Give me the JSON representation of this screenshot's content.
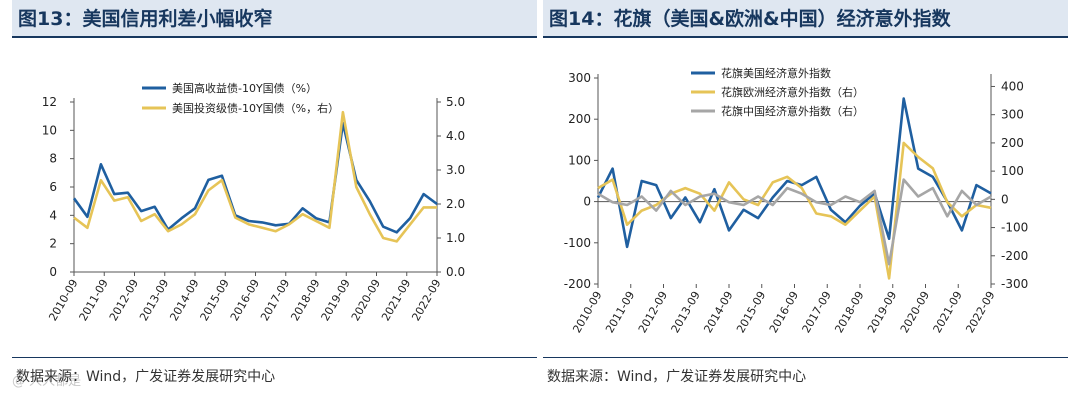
{
  "watermark": "@ 人人都是",
  "chart_data": [
    {
      "type": "line",
      "title": "图13：美国信用利差小幅收窄",
      "source": "数据来源：Wind，广发证券发展研究中心",
      "x": [
        "2010-09",
        "2011-03",
        "2011-09",
        "2012-03",
        "2012-09",
        "2013-03",
        "2013-09",
        "2014-03",
        "2014-09",
        "2015-03",
        "2015-09",
        "2016-03",
        "2016-09",
        "2017-03",
        "2017-09",
        "2018-03",
        "2018-09",
        "2019-03",
        "2019-09",
        "2020-01",
        "2020-03",
        "2020-06",
        "2020-09",
        "2021-03",
        "2021-09",
        "2022-03",
        "2022-06",
        "2022-09"
      ],
      "x_tick_labels": [
        "2010-09",
        "2011-09",
        "2012-09",
        "2013-09",
        "2014-09",
        "2015-09",
        "2016-09",
        "2017-09",
        "2018-09",
        "2019-09",
        "2020-09",
        "2021-09",
        "2022-09"
      ],
      "y_left_ticks": [
        "0",
        "2",
        "4",
        "6",
        "8",
        "10",
        "12"
      ],
      "y_right_ticks": [
        "0.0",
        "1.0",
        "2.0",
        "3.0",
        "4.0",
        "5.0"
      ],
      "ylim_left": [
        0,
        12
      ],
      "ylim_right": [
        0,
        5
      ],
      "series": [
        {
          "name": "美国高收益债-10Y国债（%）",
          "axis": "left",
          "color": "#1f5fa0",
          "values": [
            5.2,
            3.9,
            7.6,
            5.5,
            5.6,
            4.3,
            4.6,
            3.0,
            3.8,
            4.5,
            6.5,
            6.8,
            4.0,
            3.6,
            3.5,
            3.3,
            3.4,
            4.5,
            3.8,
            3.5,
            10.5,
            6.5,
            5.0,
            3.2,
            2.8,
            3.8,
            5.5,
            4.8
          ]
        },
        {
          "name": "美国投资级债-10Y国债（%，右）",
          "axis": "right",
          "color": "#e6c457",
          "values": [
            1.6,
            1.3,
            2.7,
            2.1,
            2.2,
            1.5,
            1.7,
            1.2,
            1.4,
            1.7,
            2.4,
            2.7,
            1.6,
            1.4,
            1.3,
            1.2,
            1.4,
            1.7,
            1.5,
            1.3,
            4.7,
            2.5,
            1.7,
            1.0,
            0.9,
            1.4,
            1.9,
            1.9
          ]
        }
      ]
    },
    {
      "type": "line",
      "title": "图14：花旗（美国&欧洲&中国）经济意外指数",
      "source": "数据来源：Wind，广发证券发展研究中心",
      "x": [
        "2010-09",
        "2011-03",
        "2011-09",
        "2012-03",
        "2012-09",
        "2013-03",
        "2013-09",
        "2014-03",
        "2014-09",
        "2015-03",
        "2015-09",
        "2016-03",
        "2016-09",
        "2017-03",
        "2017-09",
        "2018-03",
        "2018-09",
        "2019-03",
        "2019-09",
        "2020-01",
        "2020-03",
        "2020-06",
        "2020-09",
        "2021-03",
        "2021-09",
        "2022-03",
        "2022-06",
        "2022-09"
      ],
      "x_tick_labels": [
        "2010-09",
        "2011-09",
        "2012-09",
        "2013-09",
        "2014-09",
        "2015-09",
        "2016-09",
        "2017-09",
        "2018-09",
        "2019-09",
        "2020-09",
        "2021-09",
        "2022-09"
      ],
      "y_left_ticks": [
        "-200",
        "-100",
        "0",
        "100",
        "200",
        "300"
      ],
      "y_right_ticks": [
        "-300",
        "-200",
        "-100",
        "0",
        "100",
        "200",
        "300",
        "400"
      ],
      "ylim_left": [
        -200,
        300
      ],
      "ylim_right": [
        -300,
        430
      ],
      "series": [
        {
          "name": "花旗美国经济意外指数",
          "axis": "left",
          "color": "#1f5fa0",
          "values": [
            10,
            80,
            -110,
            50,
            40,
            -40,
            10,
            -50,
            30,
            -70,
            -20,
            -40,
            10,
            50,
            40,
            60,
            -20,
            -50,
            -10,
            20,
            -90,
            250,
            80,
            60,
            0,
            -70,
            40,
            20
          ]
        },
        {
          "name": "花旗欧洲经济意外指数（右）",
          "axis": "right",
          "color": "#e6c457",
          "values": [
            40,
            70,
            -90,
            -40,
            -20,
            20,
            40,
            20,
            -40,
            60,
            0,
            -20,
            60,
            80,
            40,
            -50,
            -60,
            -90,
            -40,
            10,
            -280,
            200,
            150,
            110,
            -10,
            -60,
            -20,
            -30
          ]
        },
        {
          "name": "花旗中国经济意外指数（右）",
          "axis": "right",
          "color": "#a6a6a6",
          "values": [
            20,
            -10,
            -20,
            10,
            -40,
            30,
            -20,
            10,
            20,
            -10,
            -20,
            10,
            -20,
            40,
            20,
            -10,
            -20,
            10,
            -10,
            30,
            -230,
            70,
            10,
            40,
            -60,
            30,
            -20,
            10
          ]
        }
      ]
    }
  ]
}
